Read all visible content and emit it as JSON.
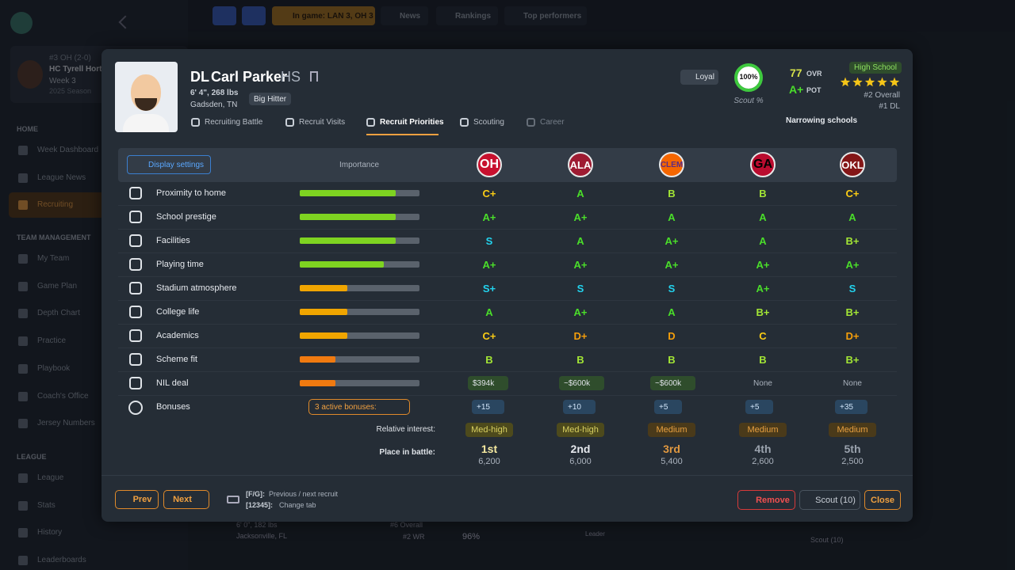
{
  "sidebar": {
    "team": {
      "record": "#3 OH (2-0)",
      "coach": "HC Tyrell Horto",
      "week": "Week 3",
      "season": "2025 Season"
    },
    "sections": [
      {
        "title": "HOME",
        "items": [
          "Week Dashboard",
          "League News",
          "Recruiting"
        ]
      },
      {
        "title": "TEAM MANAGEMENT",
        "items": [
          "My Team",
          "Game Plan",
          "Depth Chart",
          "Practice",
          "Playbook",
          "Coach's Office",
          "Jersey Numbers"
        ]
      },
      {
        "title": "LEAGUE",
        "items": [
          "League",
          "Stats",
          "History",
          "Leaderboards"
        ]
      }
    ]
  },
  "topbar": {
    "in_game": "In game: LAN 3, OH 3",
    "nav": [
      "News",
      "Rankings",
      "Top performers"
    ]
  },
  "background": {
    "size": "6' 0\", 182 lbs",
    "hometown": "Jacksonville, FL",
    "overall": "#6 Overall",
    "position_rank": "#2 WR",
    "scout": "96%",
    "leader": "Leader",
    "scout_button": "Scout (10)"
  },
  "recruit": {
    "position": "DL",
    "name": "Carl Parker",
    "class": "HS",
    "size": "6' 4\", 268 lbs",
    "hometown": "Gadsden, TN",
    "trait": "Big Hitter",
    "tabs": [
      "Recruiting Battle",
      "Recruit Visits",
      "Recruit Priorities",
      "Scouting",
      "Career"
    ],
    "loyalty": "Loyal",
    "scout_value": 100,
    "scout_label": "100%",
    "scout_caption": "Scout %",
    "ovr": "77",
    "ovr_label": "OVR",
    "pot": "A+",
    "pot_label": "POT",
    "level": "High School",
    "stars": 5,
    "overall_rank": "#2 Overall",
    "position_rank": "#1 DL",
    "status": "Narrowing schools"
  },
  "table": {
    "settings_button": "Display settings",
    "importance_header": "Importance",
    "schools": [
      {
        "abbr": "OH",
        "color": "#c8102e",
        "text": "#ffffff"
      },
      {
        "abbr": "ALA",
        "color": "#9e1b32",
        "text": "#ffffff"
      },
      {
        "abbr": "CLEM",
        "color": "#f56600",
        "text": "#5b2b86"
      },
      {
        "abbr": "GA",
        "color": "#ba0c2f",
        "text": "#000000"
      },
      {
        "abbr": "OKL",
        "color": "#841617",
        "text": "#ffffff"
      }
    ],
    "grade_colors": {
      "S": "#22d3ee",
      "A": "#4ade2a",
      "B": "#a3e635",
      "C": "#facc15",
      "D": "#f59e0b"
    },
    "rows": [
      {
        "label": "Proximity to home",
        "importance": 80,
        "color": "#7ed321",
        "grades": [
          "C+",
          "A",
          "B",
          "B",
          "C+"
        ]
      },
      {
        "label": "School prestige",
        "importance": 80,
        "color": "#7ed321",
        "grades": [
          "A+",
          "A+",
          "A",
          "A",
          "A"
        ]
      },
      {
        "label": "Facilities",
        "importance": 80,
        "color": "#7ed321",
        "grades": [
          "S",
          "A",
          "A+",
          "A",
          "B+"
        ]
      },
      {
        "label": "Playing time",
        "importance": 70,
        "color": "#7ed321",
        "grades": [
          "A+",
          "A+",
          "A+",
          "A+",
          "A+"
        ]
      },
      {
        "label": "Stadium atmosphere",
        "importance": 40,
        "color": "#f0a500",
        "grades": [
          "S+",
          "S",
          "S",
          "A+",
          "S"
        ]
      },
      {
        "label": "College life",
        "importance": 40,
        "color": "#f0a500",
        "grades": [
          "A",
          "A+",
          "A",
          "B+",
          "B+"
        ]
      },
      {
        "label": "Academics",
        "importance": 40,
        "color": "#f0a500",
        "grades": [
          "C+",
          "D+",
          "D",
          "C",
          "D+"
        ]
      },
      {
        "label": "Scheme fit",
        "importance": 30,
        "color": "#f07a10",
        "grades": [
          "B",
          "B",
          "B",
          "B",
          "B+"
        ]
      },
      {
        "label": "NIL deal",
        "importance": 30,
        "color": "#f07a10",
        "grades": [
          "$394k",
          "~$600k",
          "~$600k",
          "None",
          "None"
        ]
      }
    ],
    "bonuses": {
      "label": "Bonuses",
      "summary": "3 active bonuses:",
      "values": [
        "+15",
        "+10",
        "+5",
        "+5",
        "+35"
      ]
    },
    "interest": {
      "label": "Relative interest:",
      "values": [
        "Med-high",
        "Med-high",
        "Medium",
        "Medium",
        "Medium"
      ]
    },
    "battle": {
      "label": "Place in battle:",
      "places": [
        "1st",
        "2nd",
        "3rd",
        "4th",
        "5th"
      ],
      "values": [
        6200,
        6000,
        5400,
        2600,
        2500
      ],
      "value_labels": [
        "6,200",
        "6,000",
        "5,400",
        "2,600",
        "2,500"
      ]
    }
  },
  "footer": {
    "prev": "Prev",
    "next": "Next",
    "key1": "[F/G]:",
    "key1_text": "Previous / next recruit",
    "key2": "[12345]:",
    "key2_text": "Change tab",
    "remove": "Remove",
    "scout": "Scout (10)",
    "close": "Close"
  }
}
